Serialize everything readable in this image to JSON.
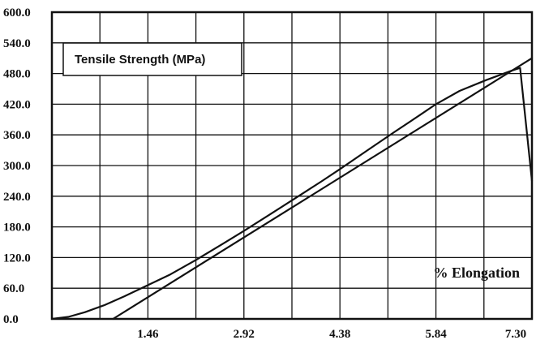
{
  "chart_data": {
    "type": "line",
    "legend_label": "Tensile Strength (MPa)",
    "legend_position": "top-left",
    "axis_caption": "% Elongation",
    "axis_caption_position": "bottom-right",
    "grid": true,
    "xlim": [
      0,
      7.3
    ],
    "ylim": [
      0,
      600
    ],
    "x_ticks": [
      1.46,
      2.92,
      4.38,
      5.84,
      7.3
    ],
    "x_tick_labels": [
      "1.46",
      "2.92",
      "4.38",
      "5.84",
      "7.30"
    ],
    "y_ticks": [
      0,
      60,
      120,
      180,
      240,
      300,
      360,
      420,
      480,
      540,
      600
    ],
    "y_tick_labels": [
      "0.0",
      "60.0",
      "120.0",
      "180.0",
      "240.0",
      "300.0",
      "360.0",
      "420.0",
      "480.0",
      "540.0",
      "600.0"
    ],
    "series": [
      {
        "color": "#111111",
        "points": [
          [
            0,
            0
          ],
          [
            0.25,
            4
          ],
          [
            0.5,
            13
          ],
          [
            0.8,
            27
          ],
          [
            1.1,
            44
          ],
          [
            1.46,
            66
          ],
          [
            1.8,
            87
          ],
          [
            2.2,
            116
          ],
          [
            2.6,
            147
          ],
          [
            2.92,
            172
          ],
          [
            3.3,
            203
          ],
          [
            3.7,
            236
          ],
          [
            4.1,
            269
          ],
          [
            4.38,
            293
          ],
          [
            4.8,
            330
          ],
          [
            5.2,
            365
          ],
          [
            5.6,
            399
          ],
          [
            5.84,
            420
          ],
          [
            6.2,
            446
          ],
          [
            6.6,
            467
          ],
          [
            7.0,
            486
          ],
          [
            7.12,
            491
          ],
          [
            7.3,
            270
          ]
        ]
      },
      {
        "color": "#111111",
        "points": [
          [
            0.93,
            0
          ],
          [
            7.3,
            510
          ]
        ]
      }
    ]
  }
}
